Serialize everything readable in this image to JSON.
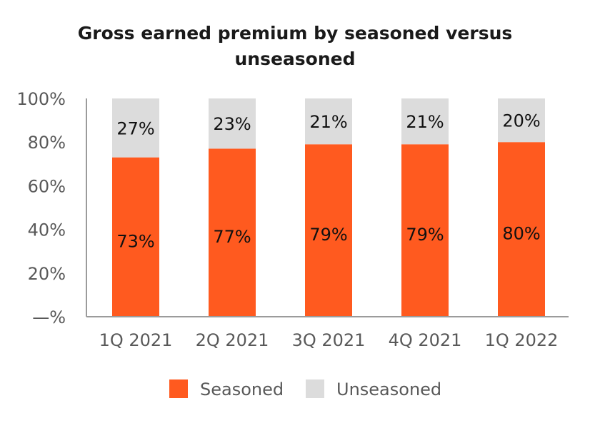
{
  "chart_data": {
    "type": "bar",
    "stacked": true,
    "title_lines": [
      "Gross earned premium by seasoned versus",
      "unseasoned"
    ],
    "categories": [
      "1Q 2021",
      "2Q 2021",
      "3Q 2021",
      "4Q 2021",
      "1Q 2022"
    ],
    "series": [
      {
        "name": "Seasoned",
        "values": [
          73,
          77,
          79,
          79,
          80
        ],
        "labels": [
          "73%",
          "77%",
          "79%",
          "79%",
          "80%"
        ],
        "color": "#ff5a1f"
      },
      {
        "name": "Unseasoned",
        "values": [
          27,
          23,
          21,
          21,
          20
        ],
        "labels": [
          "27%",
          "23%",
          "21%",
          "21%",
          "20%"
        ],
        "color": "#dcdcdc"
      }
    ],
    "y_ticks": [
      "—%",
      "20%",
      "40%",
      "60%",
      "80%",
      "100%"
    ],
    "ylim": [
      0,
      100
    ],
    "grid": false,
    "legend_position": "bottom"
  }
}
